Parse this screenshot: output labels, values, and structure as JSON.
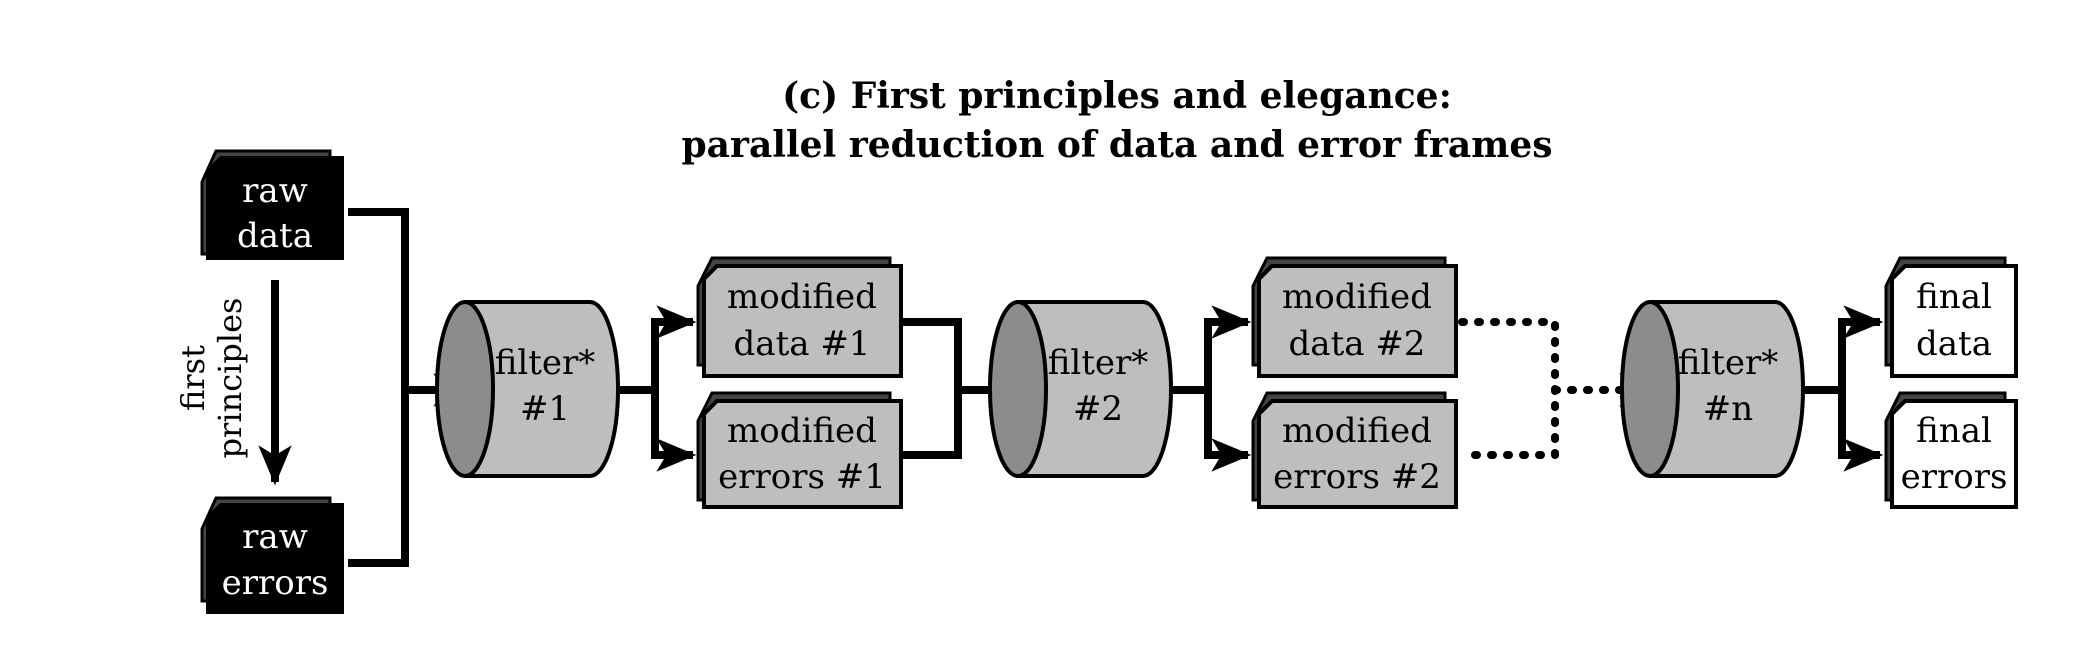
{
  "title": {
    "line1": "(c) First principles and elegance:",
    "line2": "parallel reduction of data and error frames"
  },
  "side_label": {
    "line1": "first",
    "line2": "principles"
  },
  "colors": {
    "black_frame": "#000000",
    "gray_frame": "#bebebe",
    "white_frame": "#ffffff",
    "frame_shadow": "#444444",
    "cylinder_body": "#bebebe",
    "cylinder_end": "#8c8c8c",
    "line": "#000000"
  },
  "nodes": {
    "raw_data": {
      "line1": "raw",
      "line2": "data"
    },
    "raw_errors": {
      "line1": "raw",
      "line2": "errors"
    },
    "filter_1": {
      "line1": "filter*",
      "line2": "#1"
    },
    "modified_data_1": {
      "line1": "modified",
      "line2": "data #1"
    },
    "modified_errors_1": {
      "line1": "modified",
      "line2": "errors #1"
    },
    "filter_2": {
      "line1": "filter*",
      "line2": "#2"
    },
    "modified_data_2": {
      "line1": "modified",
      "line2": "data #2"
    },
    "modified_errors_2": {
      "line1": "modified",
      "line2": "errors #2"
    },
    "filter_n": {
      "line1": "filter*",
      "line2": "#n"
    },
    "final_data": {
      "line1": "final",
      "line2": "data"
    },
    "final_errors": {
      "line1": "final",
      "line2": "errors"
    }
  }
}
